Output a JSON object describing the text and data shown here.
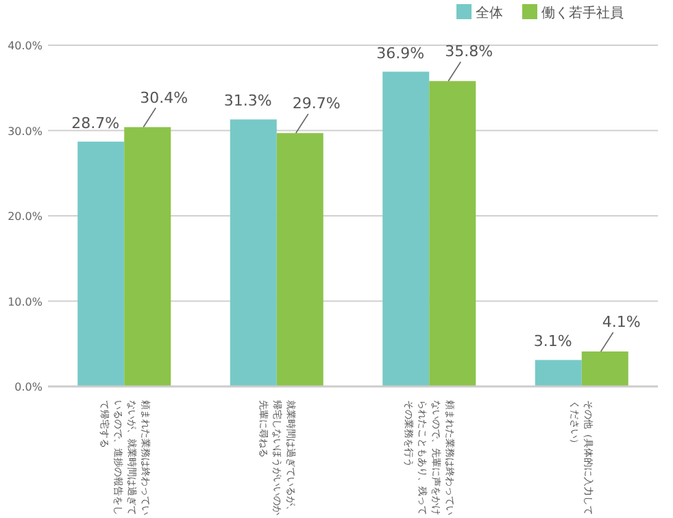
{
  "chart_data": {
    "type": "bar",
    "categories": [
      "頼まれた業務は終わっていないが、就業時間は過ぎているので、進捗の報告をして帰宅する",
      "就業時間は過ぎているが、帰宅しないほうがいいのか先輩に尋ねる",
      "頼まれた業務は終わっていないので、先輩に声をかけられたこともあり、残ってその業務を行う",
      "その他（具体的に入力してください）"
    ],
    "series": [
      {
        "name": "全体",
        "color": "#77c9c7",
        "values": [
          28.7,
          31.3,
          36.9,
          3.1
        ]
      },
      {
        "name": "働く若手社員",
        "color": "#8cc34a",
        "values": [
          30.4,
          29.7,
          35.8,
          4.1
        ]
      }
    ],
    "ylim": [
      0,
      40
    ],
    "yticks": [
      {
        "value": 0,
        "label": "0.0%"
      },
      {
        "value": 10,
        "label": "10.0%"
      },
      {
        "value": 20,
        "label": "20.0%"
      },
      {
        "value": 30,
        "label": "30.0%"
      },
      {
        "value": 40,
        "label": "40.0%"
      }
    ],
    "grid": "y",
    "legend": "top right",
    "value_labels": [
      [
        "28.7%",
        "31.3%",
        "36.9%",
        "3.1%"
      ],
      [
        "30.4%",
        "29.7%",
        "35.8%",
        "4.1%"
      ]
    ]
  }
}
